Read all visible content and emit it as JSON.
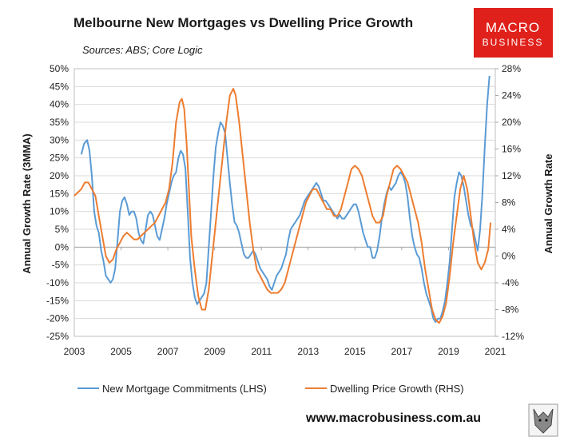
{
  "title": "Melbourne New Mortgages vs Dwelling Price Growth",
  "subtitle": "Sources: ABS; Core Logic",
  "logo": {
    "line1": "MACRO",
    "line2": "BUSINESS"
  },
  "footer": "www.macrobusiness.com.au",
  "chart_data": {
    "type": "line",
    "title": "Melbourne New Mortgages vs Dwelling Price Growth",
    "y_left_label": "Annual Growth Rate (3MMA)",
    "y_right_label": "Annual Growth Rate",
    "x_range": [
      2003,
      2021
    ],
    "x_ticks": [
      "2003",
      "2005",
      "2007",
      "2009",
      "2011",
      "2013",
      "2015",
      "2017",
      "2019",
      "2021"
    ],
    "y_left_range": [
      -25,
      50
    ],
    "y_left_ticks": [
      "50%",
      "45%",
      "40%",
      "35%",
      "30%",
      "25%",
      "20%",
      "15%",
      "10%",
      "5%",
      "0%",
      "-5%",
      "-10%",
      "-15%",
      "-20%",
      "-25%"
    ],
    "y_right_range": [
      -12,
      28
    ],
    "y_right_ticks": [
      "28%",
      "24%",
      "20%",
      "16%",
      "12%",
      "8%",
      "4%",
      "0%",
      "-4%",
      "-8%",
      "-12%"
    ],
    "grid": "horizontal",
    "legend_position": "bottom",
    "series": [
      {
        "name": "New Mortgage Commitments (LHS)",
        "axis": "left",
        "color": "#5b9bd5",
        "points": [
          [
            2003.3,
            26
          ],
          [
            2003.42,
            29
          ],
          [
            2003.55,
            30
          ],
          [
            2003.65,
            27
          ],
          [
            2003.75,
            20
          ],
          [
            2003.85,
            10
          ],
          [
            2003.95,
            6
          ],
          [
            2004.05,
            4
          ],
          [
            2004.15,
            -1
          ],
          [
            2004.25,
            -4
          ],
          [
            2004.35,
            -8
          ],
          [
            2004.45,
            -9
          ],
          [
            2004.55,
            -10
          ],
          [
            2004.65,
            -9
          ],
          [
            2004.75,
            -6
          ],
          [
            2004.85,
            2
          ],
          [
            2004.95,
            10
          ],
          [
            2005.05,
            13
          ],
          [
            2005.15,
            14
          ],
          [
            2005.25,
            12
          ],
          [
            2005.35,
            9
          ],
          [
            2005.45,
            10
          ],
          [
            2005.55,
            10
          ],
          [
            2005.65,
            8
          ],
          [
            2005.75,
            4
          ],
          [
            2005.85,
            2
          ],
          [
            2005.95,
            1
          ],
          [
            2006.05,
            5
          ],
          [
            2006.15,
            9
          ],
          [
            2006.25,
            10
          ],
          [
            2006.35,
            9
          ],
          [
            2006.45,
            6
          ],
          [
            2006.55,
            3
          ],
          [
            2006.65,
            2
          ],
          [
            2006.75,
            5
          ],
          [
            2006.85,
            8
          ],
          [
            2006.95,
            12
          ],
          [
            2007.05,
            15
          ],
          [
            2007.15,
            18
          ],
          [
            2007.25,
            20
          ],
          [
            2007.35,
            21
          ],
          [
            2007.45,
            25
          ],
          [
            2007.55,
            27
          ],
          [
            2007.65,
            26
          ],
          [
            2007.75,
            22
          ],
          [
            2007.85,
            10
          ],
          [
            2007.95,
            -3
          ],
          [
            2008.05,
            -10
          ],
          [
            2008.15,
            -14
          ],
          [
            2008.25,
            -16
          ],
          [
            2008.35,
            -15
          ],
          [
            2008.45,
            -14
          ],
          [
            2008.55,
            -13
          ],
          [
            2008.65,
            -10
          ],
          [
            2008.75,
            0
          ],
          [
            2008.85,
            10
          ],
          [
            2008.95,
            20
          ],
          [
            2009.05,
            28
          ],
          [
            2009.15,
            32
          ],
          [
            2009.25,
            35
          ],
          [
            2009.35,
            34
          ],
          [
            2009.45,
            32
          ],
          [
            2009.55,
            25
          ],
          [
            2009.65,
            18
          ],
          [
            2009.75,
            12
          ],
          [
            2009.85,
            7
          ],
          [
            2009.95,
            6
          ],
          [
            2010.05,
            4
          ],
          [
            2010.15,
            1
          ],
          [
            2010.25,
            -2
          ],
          [
            2010.35,
            -3
          ],
          [
            2010.45,
            -3
          ],
          [
            2010.55,
            -2
          ],
          [
            2010.65,
            -1
          ],
          [
            2010.75,
            -2
          ],
          [
            2010.85,
            -4
          ],
          [
            2010.95,
            -6
          ],
          [
            2011.05,
            -7
          ],
          [
            2011.15,
            -8
          ],
          [
            2011.25,
            -9
          ],
          [
            2011.35,
            -11
          ],
          [
            2011.45,
            -12
          ],
          [
            2011.55,
            -10
          ],
          [
            2011.65,
            -8
          ],
          [
            2011.75,
            -7
          ],
          [
            2011.85,
            -6
          ],
          [
            2011.95,
            -4
          ],
          [
            2012.05,
            -2
          ],
          [
            2012.15,
            2
          ],
          [
            2012.25,
            5
          ],
          [
            2012.35,
            6
          ],
          [
            2012.45,
            7
          ],
          [
            2012.55,
            8
          ],
          [
            2012.65,
            9
          ],
          [
            2012.75,
            11
          ],
          [
            2012.85,
            13
          ],
          [
            2012.95,
            14
          ],
          [
            2013.05,
            15
          ],
          [
            2013.15,
            16
          ],
          [
            2013.25,
            17
          ],
          [
            2013.35,
            18
          ],
          [
            2013.45,
            17
          ],
          [
            2013.55,
            15
          ],
          [
            2013.65,
            13
          ],
          [
            2013.75,
            13
          ],
          [
            2013.85,
            12
          ],
          [
            2013.95,
            11
          ],
          [
            2014.05,
            10
          ],
          [
            2014.15,
            9
          ],
          [
            2014.25,
            8
          ],
          [
            2014.35,
            9
          ],
          [
            2014.45,
            8
          ],
          [
            2014.55,
            8
          ],
          [
            2014.65,
            9
          ],
          [
            2014.75,
            10
          ],
          [
            2014.85,
            11
          ],
          [
            2014.95,
            12
          ],
          [
            2015.05,
            12
          ],
          [
            2015.15,
            10
          ],
          [
            2015.25,
            7
          ],
          [
            2015.35,
            4
          ],
          [
            2015.45,
            2
          ],
          [
            2015.55,
            0
          ],
          [
            2015.65,
            0
          ],
          [
            2015.75,
            -3
          ],
          [
            2015.85,
            -3
          ],
          [
            2015.95,
            -1
          ],
          [
            2016.05,
            3
          ],
          [
            2016.15,
            8
          ],
          [
            2016.25,
            12
          ],
          [
            2016.35,
            15
          ],
          [
            2016.45,
            17
          ],
          [
            2016.55,
            16
          ],
          [
            2016.65,
            17
          ],
          [
            2016.75,
            18
          ],
          [
            2016.85,
            20
          ],
          [
            2016.95,
            21
          ],
          [
            2017.05,
            20
          ],
          [
            2017.15,
            18
          ],
          [
            2017.25,
            14
          ],
          [
            2017.35,
            8
          ],
          [
            2017.45,
            3
          ],
          [
            2017.55,
            0
          ],
          [
            2017.65,
            -2
          ],
          [
            2017.75,
            -3
          ],
          [
            2017.85,
            -6
          ],
          [
            2017.95,
            -10
          ],
          [
            2018.05,
            -13
          ],
          [
            2018.15,
            -15
          ],
          [
            2018.25,
            -17
          ],
          [
            2018.35,
            -20
          ],
          [
            2018.45,
            -21
          ],
          [
            2018.55,
            -20
          ],
          [
            2018.65,
            -20
          ],
          [
            2018.75,
            -18
          ],
          [
            2018.85,
            -15
          ],
          [
            2018.95,
            -10
          ],
          [
            2019.05,
            -4
          ],
          [
            2019.15,
            5
          ],
          [
            2019.25,
            14
          ],
          [
            2019.35,
            18
          ],
          [
            2019.45,
            21
          ],
          [
            2019.55,
            20
          ],
          [
            2019.65,
            17
          ],
          [
            2019.75,
            13
          ],
          [
            2019.85,
            9
          ],
          [
            2019.95,
            6
          ],
          [
            2020.05,
            5
          ],
          [
            2020.15,
            2
          ],
          [
            2020.25,
            -1
          ],
          [
            2020.35,
            5
          ],
          [
            2020.45,
            15
          ],
          [
            2020.55,
            28
          ],
          [
            2020.65,
            40
          ],
          [
            2020.75,
            48
          ]
        ]
      },
      {
        "name": "Dwelling Price Growth (RHS)",
        "axis": "right",
        "color": "#ed7d31",
        "points": [
          [
            2003.0,
            9
          ],
          [
            2003.15,
            9.5
          ],
          [
            2003.3,
            10
          ],
          [
            2003.45,
            11
          ],
          [
            2003.6,
            11
          ],
          [
            2003.75,
            10
          ],
          [
            2003.9,
            9
          ],
          [
            2004.05,
            6
          ],
          [
            2004.2,
            3
          ],
          [
            2004.35,
            0
          ],
          [
            2004.5,
            -1
          ],
          [
            2004.65,
            -0.5
          ],
          [
            2004.8,
            1
          ],
          [
            2004.95,
            2
          ],
          [
            2005.1,
            3
          ],
          [
            2005.25,
            3.5
          ],
          [
            2005.4,
            3
          ],
          [
            2005.55,
            2.5
          ],
          [
            2005.7,
            2.5
          ],
          [
            2005.85,
            3
          ],
          [
            2006.0,
            3.5
          ],
          [
            2006.15,
            4
          ],
          [
            2006.3,
            4.5
          ],
          [
            2006.45,
            5
          ],
          [
            2006.6,
            6
          ],
          [
            2006.75,
            7
          ],
          [
            2006.9,
            8
          ],
          [
            2007.05,
            10
          ],
          [
            2007.2,
            14
          ],
          [
            2007.35,
            20
          ],
          [
            2007.5,
            23
          ],
          [
            2007.6,
            23.5
          ],
          [
            2007.7,
            22
          ],
          [
            2007.8,
            17
          ],
          [
            2007.9,
            10
          ],
          [
            2008.0,
            3
          ],
          [
            2008.15,
            -2
          ],
          [
            2008.3,
            -6
          ],
          [
            2008.45,
            -8
          ],
          [
            2008.6,
            -8
          ],
          [
            2008.75,
            -5
          ],
          [
            2008.9,
            0
          ],
          [
            2009.05,
            5
          ],
          [
            2009.2,
            10
          ],
          [
            2009.35,
            15
          ],
          [
            2009.5,
            20
          ],
          [
            2009.65,
            24
          ],
          [
            2009.8,
            25
          ],
          [
            2009.9,
            24
          ],
          [
            2010.05,
            20
          ],
          [
            2010.2,
            15
          ],
          [
            2010.35,
            10
          ],
          [
            2010.5,
            5
          ],
          [
            2010.65,
            1
          ],
          [
            2010.8,
            -2
          ],
          [
            2010.95,
            -3
          ],
          [
            2011.1,
            -4
          ],
          [
            2011.25,
            -5
          ],
          [
            2011.4,
            -5.5
          ],
          [
            2011.55,
            -5.5
          ],
          [
            2011.7,
            -5.5
          ],
          [
            2011.85,
            -5
          ],
          [
            2012.0,
            -4
          ],
          [
            2012.15,
            -2
          ],
          [
            2012.3,
            0
          ],
          [
            2012.45,
            2
          ],
          [
            2012.6,
            4
          ],
          [
            2012.75,
            6
          ],
          [
            2012.9,
            8
          ],
          [
            2013.05,
            9
          ],
          [
            2013.2,
            10
          ],
          [
            2013.35,
            10
          ],
          [
            2013.5,
            9
          ],
          [
            2013.65,
            8
          ],
          [
            2013.8,
            7
          ],
          [
            2013.95,
            7
          ],
          [
            2014.1,
            6
          ],
          [
            2014.25,
            6
          ],
          [
            2014.4,
            7
          ],
          [
            2014.55,
            9
          ],
          [
            2014.7,
            11
          ],
          [
            2014.85,
            13
          ],
          [
            2015.0,
            13.5
          ],
          [
            2015.15,
            13
          ],
          [
            2015.3,
            12
          ],
          [
            2015.45,
            10
          ],
          [
            2015.6,
            8
          ],
          [
            2015.75,
            6
          ],
          [
            2015.9,
            5
          ],
          [
            2016.05,
            5
          ],
          [
            2016.2,
            6
          ],
          [
            2016.35,
            9
          ],
          [
            2016.5,
            11
          ],
          [
            2016.65,
            13
          ],
          [
            2016.8,
            13.5
          ],
          [
            2016.95,
            13
          ],
          [
            2017.1,
            12
          ],
          [
            2017.25,
            11
          ],
          [
            2017.4,
            9
          ],
          [
            2017.55,
            7
          ],
          [
            2017.7,
            5
          ],
          [
            2017.85,
            2
          ],
          [
            2018.0,
            -2
          ],
          [
            2018.15,
            -5
          ],
          [
            2018.3,
            -8
          ],
          [
            2018.45,
            -9.5
          ],
          [
            2018.6,
            -10
          ],
          [
            2018.75,
            -9
          ],
          [
            2018.9,
            -7
          ],
          [
            2019.05,
            -3
          ],
          [
            2019.2,
            2
          ],
          [
            2019.35,
            6
          ],
          [
            2019.5,
            10
          ],
          [
            2019.65,
            12
          ],
          [
            2019.8,
            10
          ],
          [
            2019.95,
            6
          ],
          [
            2020.1,
            2
          ],
          [
            2020.25,
            -1
          ],
          [
            2020.4,
            -2
          ],
          [
            2020.55,
            -1
          ],
          [
            2020.7,
            1
          ],
          [
            2020.8,
            5
          ]
        ]
      }
    ]
  }
}
